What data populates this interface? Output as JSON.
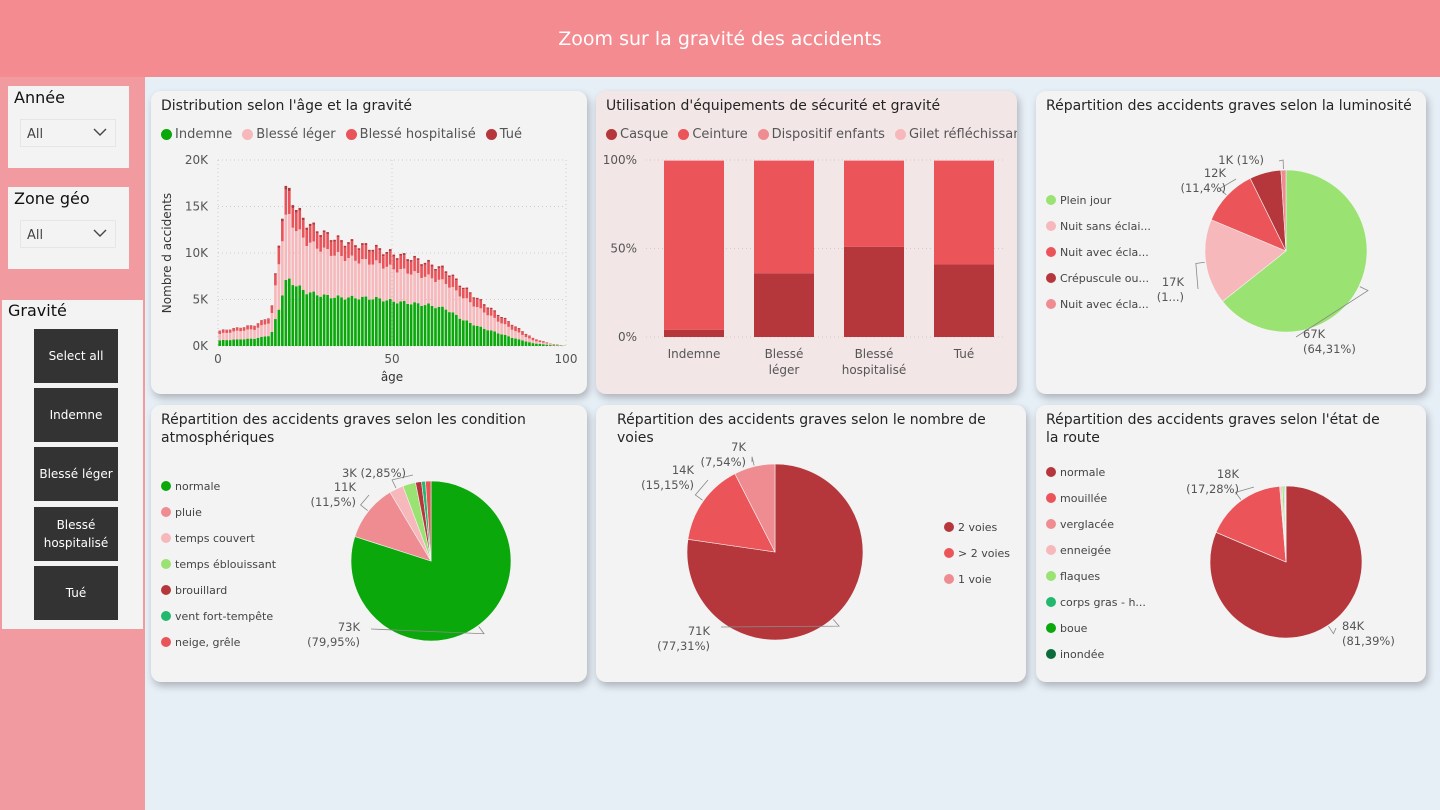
{
  "header": {
    "title": "Zoom sur la gravité des accidents"
  },
  "slicers": {
    "annee": {
      "title": "Année",
      "value": "All"
    },
    "zone": {
      "title": "Zone géo",
      "value": "All"
    },
    "gravite": {
      "title": "Gravité",
      "buttons": [
        "Select all",
        "Indemne",
        "Blessé léger",
        "Blessé hospitalisé",
        "Tué"
      ]
    }
  },
  "colors": {
    "indemne": "#0aa80a",
    "leger": "#f6b8bb",
    "hosp": "#e8545a",
    "tue": "#b5373c"
  },
  "charts": {
    "age": {
      "title": "Distribution selon l'âge et la gravité",
      "legend": [
        "Indemne",
        "Blessé léger",
        "Blessé hospitalisé",
        "Tué"
      ],
      "chart_data": {
        "type": "bar",
        "stacked": true,
        "xlabel": "âge",
        "ylabel": "Nombre d accidents",
        "x_ticks": [
          "0",
          "50",
          "100"
        ],
        "y_ticks": [
          "0K",
          "5K",
          "10K",
          "15K",
          "20K"
        ],
        "xlim": [
          0,
          100
        ],
        "ylim": [
          0,
          20000
        ],
        "anchors_age": [
          0,
          5,
          10,
          14,
          15,
          16,
          17,
          18,
          19,
          20,
          22,
          25,
          30,
          35,
          40,
          45,
          50,
          55,
          60,
          65,
          70,
          75,
          80,
          85,
          90,
          95,
          100
        ],
        "series": [
          {
            "name": "Indemne",
            "values": [
              600,
              700,
              800,
              1100,
              1500,
              2800,
              4000,
              5600,
              6900,
              7100,
              6500,
              5800,
              5400,
              5200,
              5200,
              5100,
              4800,
              4600,
              4400,
              4000,
              2800,
              2000,
              1400,
              800,
              300,
              100,
              0
            ]
          },
          {
            "name": "Blessé léger",
            "values": [
              700,
              900,
              1000,
              1400,
              2000,
              3500,
              5000,
              6000,
              6800,
              6800,
              6000,
              5400,
              4900,
              4400,
              4000,
              3800,
              3500,
              3300,
              3000,
              2800,
              2400,
              1900,
              1300,
              800,
              300,
              100,
              0
            ]
          },
          {
            "name": "Blessé hospitalisé",
            "values": [
              300,
              300,
              400,
              500,
              700,
              1100,
              1800,
              2200,
              2600,
              2400,
              2000,
              1800,
              1600,
              1500,
              1500,
              1400,
              1400,
              1400,
              1300,
              1200,
              1000,
              800,
              600,
              400,
              200,
              50,
              0
            ]
          },
          {
            "name": "Tué",
            "values": [
              50,
              50,
              60,
              80,
              100,
              150,
              250,
              300,
              400,
              350,
              300,
              250,
              200,
              200,
              200,
              200,
              200,
              200,
              200,
              200,
              150,
              150,
              150,
              100,
              50,
              20,
              0
            ]
          }
        ]
      }
    },
    "equip": {
      "title": "Utilisation d'équipements de sécurité et gravité",
      "legend": [
        "Casque",
        "Ceinture",
        "Dispositif enfants",
        "Gilet réfléchissant"
      ],
      "chart_data": {
        "type": "bar",
        "stacked": true,
        "percent": true,
        "y_ticks": [
          "100%",
          "50%",
          "0%"
        ],
        "categories": [
          "Indemne",
          "Blessé léger",
          "Blessé hospitalisé",
          "Tué"
        ],
        "series": [
          {
            "name": "Casque",
            "values": [
              4,
              36,
              51,
              41
            ]
          },
          {
            "name": "Ceinture",
            "values": [
              95.5,
              63.5,
              48.5,
              58.5
            ]
          },
          {
            "name": "Dispositif enfants",
            "values": [
              0.3,
              0.3,
              0.3,
              0.3
            ]
          },
          {
            "name": "Gilet réfléchissant",
            "values": [
              0.2,
              0.2,
              0.2,
              0.2
            ]
          }
        ],
        "colors": [
          "#b5373c",
          "#eb5559",
          "#ef8c91",
          "#f6b8bb"
        ]
      }
    },
    "lum": {
      "title": "Répartition des accidents graves selon la luminosité",
      "chart_data": {
        "type": "pie",
        "series": [
          {
            "name": "Plein jour",
            "value": 64.31,
            "color": "#9ae271"
          },
          {
            "name": "Nuit sans éclai...",
            "value": 17.0,
            "color": "#f6b8bb"
          },
          {
            "name": "Nuit avec écla...",
            "value": 11.4,
            "color": "#eb5559"
          },
          {
            "name": "Crépuscule ou...",
            "value": 6.29,
            "color": "#b5373c"
          },
          {
            "name": "Nuit avec écla...",
            "value": 1.0,
            "color": "#ef8c91"
          }
        ],
        "labels": [
          {
            "l1": "67K",
            "l2": "(64,31%)"
          },
          {
            "l1": "17K",
            "l2": "(1...)"
          },
          {
            "l1": "12K",
            "l2": "(11,4%)"
          },
          {
            "l1": "1K (1%)",
            "l2": ""
          }
        ]
      }
    },
    "atmo": {
      "title": "Répartition des accidents graves selon les condition atmosphériques",
      "chart_data": {
        "type": "pie",
        "series": [
          {
            "name": "normale",
            "value": 79.95,
            "color": "#0aa80a"
          },
          {
            "name": "pluie",
            "value": 11.5,
            "color": "#ef8c91"
          },
          {
            "name": "temps couvert",
            "value": 2.85,
            "color": "#f6b8bb"
          },
          {
            "name": "temps éblouissant",
            "value": 2.6,
            "color": "#9ae271"
          },
          {
            "name": "brouillard",
            "value": 1.2,
            "color": "#b5373c"
          },
          {
            "name": "vent fort-tempête",
            "value": 0.8,
            "color": "#22b86f"
          },
          {
            "name": "neige, grêle",
            "value": 1.1,
            "color": "#e8545a"
          }
        ],
        "labels": [
          {
            "l1": "73K",
            "l2": "(79,95%)"
          },
          {
            "l1": "11K",
            "l2": "(11,5%)"
          },
          {
            "l1": "3K (2,85%)",
            "l2": ""
          }
        ]
      }
    },
    "voies": {
      "title": "Répartition des accidents graves selon le nombre de voies",
      "chart_data": {
        "type": "pie",
        "series": [
          {
            "name": "2 voies",
            "value": 77.31,
            "color": "#b5373c"
          },
          {
            "name": "> 2 voies",
            "value": 15.15,
            "color": "#eb5559"
          },
          {
            "name": "1 voie",
            "value": 7.54,
            "color": "#ef8c91"
          }
        ],
        "labels": [
          {
            "l1": "71K",
            "l2": "(77,31%)"
          },
          {
            "l1": "14K",
            "l2": "(15,15%)"
          },
          {
            "l1": "7K",
            "l2": "(7,54%)"
          }
        ]
      }
    },
    "route": {
      "title": "Répartition des accidents graves selon l'état de la route",
      "chart_data": {
        "type": "pie",
        "series": [
          {
            "name": "normale",
            "value": 81.39,
            "color": "#b5373c"
          },
          {
            "name": "mouillée",
            "value": 17.28,
            "color": "#eb5559"
          },
          {
            "name": "verglacée",
            "value": 0.2,
            "color": "#ef8c91"
          },
          {
            "name": "enneigée",
            "value": 0.3,
            "color": "#f6b8bb"
          },
          {
            "name": "flaques",
            "value": 0.4,
            "color": "#9ae271"
          },
          {
            "name": "corps gras - h...",
            "value": 0.2,
            "color": "#22b86f"
          },
          {
            "name": "boue",
            "value": 0.15,
            "color": "#0aa80a"
          },
          {
            "name": "inondée",
            "value": 0.08,
            "color": "#0b6b3a"
          }
        ],
        "labels": [
          {
            "l1": "84K",
            "l2": "(81,39%)"
          },
          {
            "l1": "18K",
            "l2": "(17,28%)"
          }
        ]
      }
    }
  }
}
